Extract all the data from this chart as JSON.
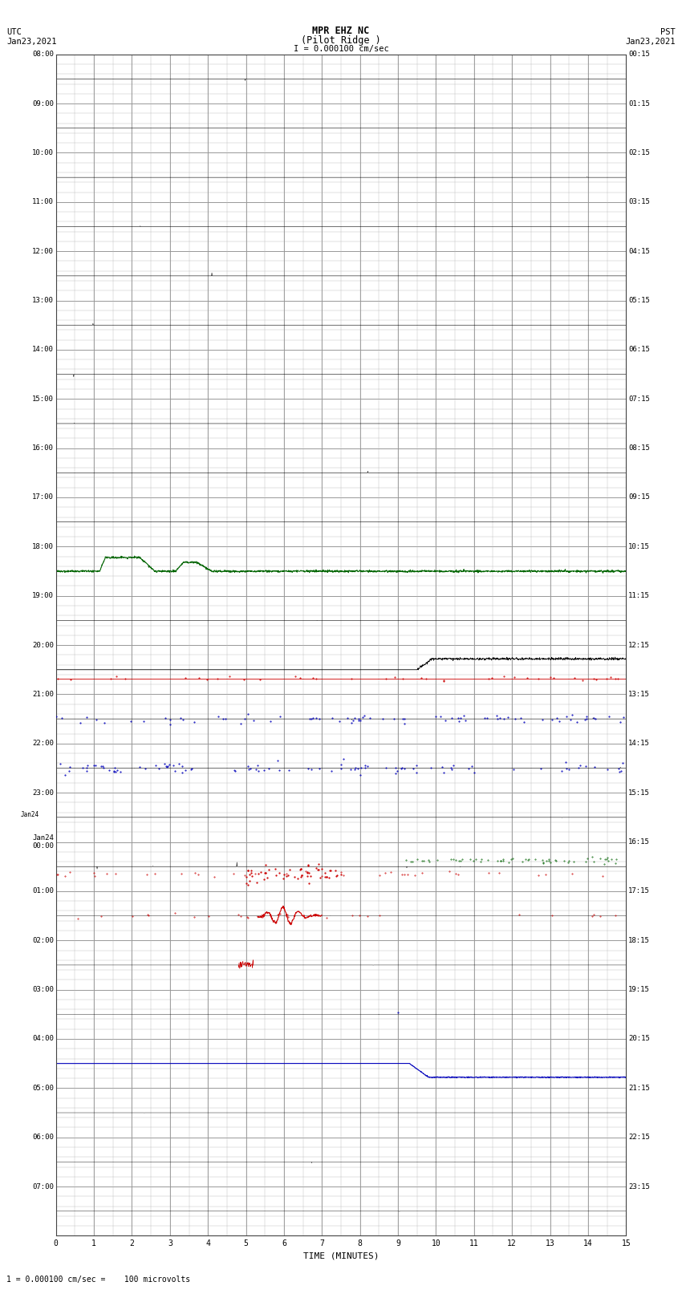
{
  "title_line1": "MPR EHZ NC",
  "title_line2": "(Pilot Ridge )",
  "scale_label": "I = 0.000100 cm/sec",
  "left_header_line1": "UTC",
  "left_header_line2": "Jan23,2021",
  "right_header_line1": "PST",
  "right_header_line2": "Jan23,2021",
  "bottom_label": "TIME (MINUTES)",
  "footer_text": "1 = 0.000100 cm/sec =    100 microvolts",
  "utc_times_left": [
    "08:00",
    "09:00",
    "10:00",
    "11:00",
    "12:00",
    "13:00",
    "14:00",
    "15:00",
    "16:00",
    "17:00",
    "18:00",
    "19:00",
    "20:00",
    "21:00",
    "22:00",
    "23:00",
    "Jan24\n00:00",
    "01:00",
    "02:00",
    "03:00",
    "04:00",
    "05:00",
    "06:00",
    "07:00"
  ],
  "pst_times_right": [
    "00:15",
    "01:15",
    "02:15",
    "03:15",
    "04:15",
    "05:15",
    "06:15",
    "07:15",
    "08:15",
    "09:15",
    "10:15",
    "11:15",
    "12:15",
    "13:15",
    "14:15",
    "15:15",
    "16:15",
    "17:15",
    "18:15",
    "19:15",
    "20:15",
    "21:15",
    "22:15",
    "23:15"
  ],
  "n_rows": 24,
  "background_color": "#ffffff",
  "grid_color": "#888888",
  "subgrid_color": "#bbbbbb",
  "trace_colors": {
    "green": "#006400",
    "black": "#000000",
    "blue": "#0000bb",
    "red": "#cc0000",
    "darkgreen": "#004400"
  }
}
